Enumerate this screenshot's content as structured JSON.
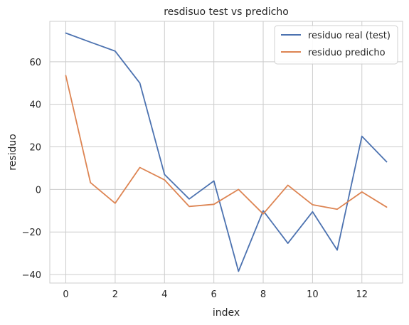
{
  "chart_data": {
    "type": "line",
    "title": "resdisuo test vs predicho",
    "xlabel": "index",
    "ylabel": "residuo",
    "x": [
      0,
      1,
      2,
      3,
      4,
      5,
      6,
      7,
      8,
      9,
      10,
      11,
      12,
      13
    ],
    "xlim": [
      -0.65,
      13.65
    ],
    "ylim": [
      -44,
      79
    ],
    "xticks": [
      0,
      2,
      4,
      6,
      8,
      10,
      12
    ],
    "yticks": [
      -40,
      -20,
      0,
      20,
      40,
      60
    ],
    "grid": true,
    "legend_position": "top-right",
    "series": [
      {
        "name": "residuo real (test)",
        "color": "#4c72b0",
        "values": [
          73.5,
          69.2,
          65.0,
          50.0,
          7.0,
          -4.5,
          4.0,
          -38.5,
          -10.0,
          -25.3,
          -10.5,
          -28.5,
          25.0,
          13.0
        ]
      },
      {
        "name": "residuo predicho",
        "color": "#dd8452",
        "values": [
          53.5,
          3.2,
          -6.5,
          10.3,
          4.5,
          -8.0,
          -7.0,
          0.0,
          -11.5,
          2.0,
          -7.2,
          -9.3,
          -1.2,
          -8.3
        ]
      }
    ]
  }
}
